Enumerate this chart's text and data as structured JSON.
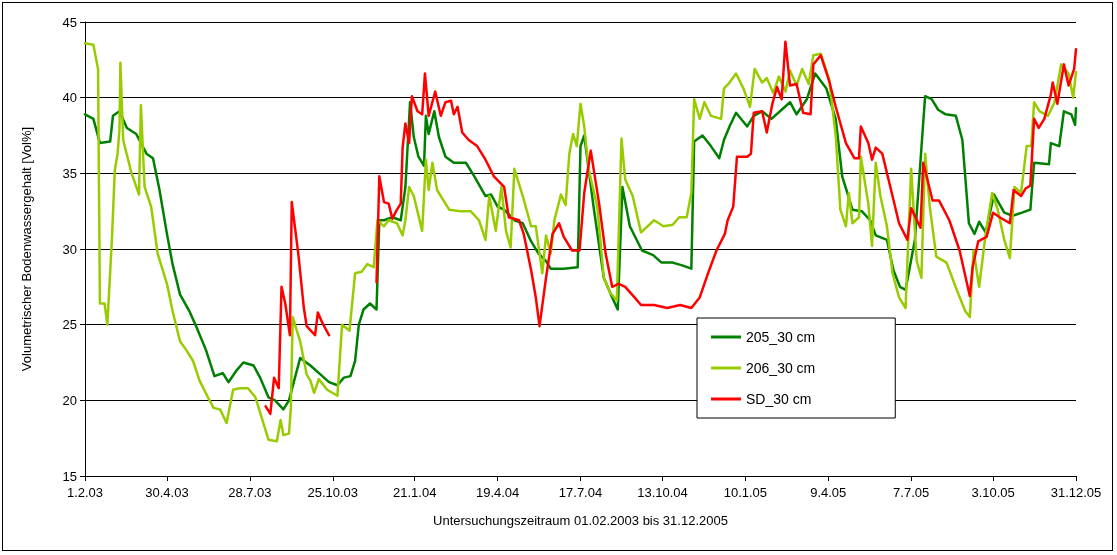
{
  "chart_data": {
    "type": "line",
    "xlabel": "Untersuchungszeitraum 01.02.2003 bis 31.12.2005",
    "ylabel": "Volumetrischer Bodenwassergehalt [Vol%]",
    "xlim": [
      "2003-02-01",
      "2005-12-31"
    ],
    "xticks": [
      {
        "value": "2003-02-01",
        "label": "1.2.03"
      },
      {
        "value": "2003-04-30",
        "label": "30.4.03"
      },
      {
        "value": "2003-07-28",
        "label": "28.7.03"
      },
      {
        "value": "2003-10-25",
        "label": "25.10.03"
      },
      {
        "value": "2004-01-21",
        "label": "21.1.04"
      },
      {
        "value": "2004-04-19",
        "label": "19.4.04"
      },
      {
        "value": "2004-07-17",
        "label": "17.7.04"
      },
      {
        "value": "2004-10-13",
        "label": "13.10.04"
      },
      {
        "value": "2005-01-10",
        "label": "10.1.05"
      },
      {
        "value": "2005-04-09",
        "label": "9.4.05"
      },
      {
        "value": "2005-07-07",
        "label": "7.7.05"
      },
      {
        "value": "2005-10-03",
        "label": "3.10.05"
      },
      {
        "value": "2005-12-31",
        "label": "31.12.05"
      }
    ],
    "ylim": [
      15,
      45
    ],
    "yticks": [
      15,
      20,
      25,
      30,
      35,
      40,
      45
    ],
    "grid": "y",
    "legend": "bottom",
    "marker": "none",
    "line_style": "solid",
    "series": [
      {
        "name": "205_30 cm",
        "color": "#008000",
        "x": [
          "2003-02-01",
          "2003-02-10",
          "2003-02-17",
          "2003-02-28",
          "2003-03-03",
          "2003-03-10",
          "2003-03-18",
          "2003-03-28",
          "2003-04-08",
          "2003-04-15",
          "2003-04-22",
          "2003-04-30",
          "2003-05-06",
          "2003-05-14",
          "2003-05-24",
          "2003-06-01",
          "2003-06-11",
          "2003-06-20",
          "2003-06-29",
          "2003-07-05",
          "2003-07-14",
          "2003-07-21",
          "2003-08-01",
          "2003-08-08",
          "2003-08-17",
          "2003-08-24",
          "2003-09-02",
          "2003-09-08",
          "2003-09-20",
          "2003-10-01",
          "2003-10-12",
          "2003-10-21",
          "2003-10-30",
          "2003-11-06",
          "2003-11-13",
          "2003-11-18",
          "2003-11-22",
          "2003-11-27",
          "2003-12-04",
          "2003-12-11",
          "2003-12-14",
          "2003-12-19",
          "2003-12-28",
          "2004-01-06",
          "2004-01-11",
          "2004-01-16",
          "2004-01-20",
          "2004-01-25",
          "2004-01-31",
          "2004-02-02",
          "2004-02-05",
          "2004-02-11",
          "2004-02-16",
          "2004-02-23",
          "2004-03-03",
          "2004-03-16",
          "2004-03-25",
          "2004-04-06",
          "2004-04-12",
          "2004-04-19",
          "2004-04-26",
          "2004-05-07",
          "2004-05-16",
          "2004-05-25",
          "2004-06-02",
          "2004-06-10",
          "2004-06-15",
          "2004-06-29",
          "2004-07-14",
          "2004-07-17",
          "2004-07-21",
          "2004-07-31",
          "2004-08-11",
          "2004-08-20",
          "2004-08-26",
          "2004-08-31",
          "2004-09-08",
          "2004-09-21",
          "2004-10-03",
          "2004-10-12",
          "2004-10-24",
          "2004-11-04",
          "2004-11-13",
          "2004-11-16",
          "2004-11-25",
          "2004-12-04",
          "2004-12-13",
          "2004-12-18",
          "2004-12-24",
          "2004-12-31",
          "2005-01-12",
          "2005-01-19",
          "2005-01-28",
          "2005-02-07",
          "2005-02-18",
          "2005-02-27",
          "2005-03-06",
          "2005-03-17",
          "2005-03-26",
          "2005-04-07",
          "2005-04-17",
          "2005-04-24",
          "2005-05-05",
          "2005-05-15",
          "2005-05-24",
          "2005-05-30",
          "2005-06-11",
          "2005-06-18",
          "2005-06-25",
          "2005-07-01",
          "2005-07-11",
          "2005-07-22",
          "2005-07-29",
          "2005-08-05",
          "2005-08-13",
          "2005-08-24",
          "2005-08-31",
          "2005-09-07",
          "2005-09-13",
          "2005-09-18",
          "2005-09-25",
          "2005-10-04",
          "2005-10-15",
          "2005-10-24",
          "2005-11-03",
          "2005-11-12",
          "2005-11-16",
          "2005-12-02",
          "2005-12-04",
          "2005-12-13",
          "2005-12-18",
          "2005-12-26",
          "2005-12-30",
          "2005-12-31"
        ],
        "values": [
          38.9,
          38.6,
          37.0,
          37.1,
          38.8,
          39.1,
          38.0,
          37.6,
          36.3,
          36.0,
          33.9,
          31.0,
          29.0,
          27.0,
          25.9,
          24.8,
          23.3,
          21.6,
          21.8,
          21.2,
          22.0,
          22.5,
          22.3,
          21.5,
          20.2,
          20.0,
          19.4,
          20.0,
          22.8,
          22.3,
          21.7,
          21.2,
          21.0,
          21.5,
          21.6,
          22.6,
          25.0,
          26.0,
          26.4,
          26.0,
          31.9,
          31.9,
          32.1,
          31.9,
          34.1,
          39.7,
          37.4,
          36.1,
          35.5,
          38.8,
          37.6,
          39.1,
          37.4,
          36.1,
          35.7,
          35.7,
          34.8,
          33.5,
          33.6,
          32.8,
          32.6,
          31.9,
          31.7,
          30.5,
          29.7,
          29.2,
          28.7,
          28.7,
          28.8,
          36.8,
          37.5,
          32.8,
          28.1,
          26.8,
          26.0,
          34.1,
          31.5,
          29.9,
          29.6,
          29.1,
          29.1,
          28.9,
          28.7,
          37.1,
          37.5,
          36.8,
          36.0,
          37.2,
          38.1,
          39.0,
          38.1,
          38.8,
          39.1,
          38.6,
          39.2,
          39.7,
          38.9,
          39.9,
          41.6,
          40.6,
          38.6,
          34.8,
          32.6,
          32.5,
          31.9,
          30.9,
          30.6,
          28.6,
          27.5,
          27.3,
          30.6,
          40.1,
          39.9,
          39.2,
          38.9,
          38.8,
          37.2,
          31.7,
          31.0,
          31.8,
          31.1,
          33.6,
          32.4,
          32.2,
          32.4,
          32.6,
          35.7,
          35.6,
          37.0,
          36.8,
          39.1,
          38.9,
          38.2,
          39.3
        ]
      },
      {
        "name": "206_30 cm",
        "color": "#99cc00",
        "x": [
          "2003-02-01",
          "2003-02-10",
          "2003-02-15",
          "2003-02-17",
          "2003-02-22",
          "2003-02-25",
          "2003-03-02",
          "2003-03-05",
          "2003-03-08",
          "2003-03-10",
          "2003-03-11",
          "2003-03-14",
          "2003-03-23",
          "2003-03-27",
          "2003-03-31",
          "2003-04-02",
          "2003-04-06",
          "2003-04-13",
          "2003-04-20",
          "2003-04-30",
          "2003-05-06",
          "2003-05-14",
          "2003-05-21",
          "2003-05-28",
          "2003-06-04",
          "2003-06-13",
          "2003-06-19",
          "2003-06-26",
          "2003-07-03",
          "2003-07-10",
          "2003-07-17",
          "2003-07-26",
          "2003-08-03",
          "2003-08-12",
          "2003-08-17",
          "2003-08-26",
          "2003-08-30",
          "2003-09-02",
          "2003-09-08",
          "2003-09-10",
          "2003-09-12",
          "2003-09-20",
          "2003-09-27",
          "2003-10-01",
          "2003-10-05",
          "2003-10-10",
          "2003-10-19",
          "2003-10-30",
          "2003-11-04",
          "2003-11-12",
          "2003-11-18",
          "2003-11-25",
          "2003-12-01",
          "2003-12-08",
          "2003-12-12",
          "2003-12-19",
          "2003-12-24",
          "2004-01-02",
          "2004-01-08",
          "2004-01-11",
          "2004-01-15",
          "2004-01-20",
          "2004-01-29",
          "2004-02-02",
          "2004-02-05",
          "2004-02-09",
          "2004-02-14",
          "2004-02-27",
          "2004-03-10",
          "2004-03-21",
          "2004-03-30",
          "2004-04-06",
          "2004-04-10",
          "2004-04-17",
          "2004-04-23",
          "2004-04-28",
          "2004-05-03",
          "2004-05-07",
          "2004-05-16",
          "2004-05-25",
          "2004-05-30",
          "2004-06-06",
          "2004-06-10",
          "2004-06-15",
          "2004-06-19",
          "2004-06-26",
          "2004-07-01",
          "2004-07-05",
          "2004-07-09",
          "2004-07-13",
          "2004-07-17",
          "2004-07-21",
          "2004-07-26",
          "2004-08-04",
          "2004-08-11",
          "2004-08-18",
          "2004-08-25",
          "2004-08-30",
          "2004-09-03",
          "2004-09-11",
          "2004-09-20",
          "2004-10-04",
          "2004-10-14",
          "2004-10-24",
          "2004-10-31",
          "2004-11-08",
          "2004-11-13",
          "2004-11-16",
          "2004-11-22",
          "2004-11-27",
          "2004-12-04",
          "2004-12-15",
          "2004-12-18",
          "2004-12-24",
          "2004-12-31",
          "2005-01-08",
          "2005-01-15",
          "2005-01-20",
          "2005-01-28",
          "2005-02-02",
          "2005-02-09",
          "2005-02-15",
          "2005-02-22",
          "2005-02-27",
          "2005-03-06",
          "2005-03-12",
          "2005-03-19",
          "2005-03-24",
          "2005-04-01",
          "2005-04-10",
          "2005-04-17",
          "2005-04-22",
          "2005-04-28",
          "2005-05-01",
          "2005-05-05",
          "2005-05-12",
          "2005-05-14",
          "2005-05-22",
          "2005-05-26",
          "2005-05-30",
          "2005-06-04",
          "2005-06-11",
          "2005-06-17",
          "2005-06-24",
          "2005-07-01",
          "2005-07-07",
          "2005-07-13",
          "2005-07-18",
          "2005-07-22",
          "2005-07-27",
          "2005-08-03",
          "2005-08-14",
          "2005-08-25",
          "2005-09-03",
          "2005-09-08",
          "2005-09-12",
          "2005-09-18",
          "2005-09-25",
          "2005-10-02",
          "2005-10-08",
          "2005-10-15",
          "2005-10-21",
          "2005-10-26",
          "2005-11-02",
          "2005-11-08",
          "2005-11-13",
          "2005-11-16",
          "2005-11-22",
          "2005-12-01",
          "2005-12-08",
          "2005-12-15",
          "2005-12-23",
          "2005-12-28",
          "2005-12-31"
        ],
        "values": [
          43.6,
          43.5,
          41.9,
          26.4,
          26.4,
          25.0,
          30.8,
          35.2,
          36.3,
          37.9,
          42.3,
          37.2,
          35.0,
          34.3,
          33.6,
          39.5,
          34.1,
          32.8,
          29.7,
          27.7,
          25.9,
          23.9,
          23.3,
          22.6,
          21.3,
          20.2,
          19.5,
          19.4,
          18.5,
          20.7,
          20.8,
          20.8,
          20.2,
          18.4,
          17.4,
          17.3,
          18.7,
          17.7,
          17.8,
          19.5,
          25.5,
          23.9,
          21.7,
          21.3,
          20.5,
          21.4,
          20.7,
          20.3,
          25.0,
          24.6,
          28.4,
          28.5,
          29.0,
          28.8,
          31.9,
          31.5,
          31.9,
          31.7,
          30.9,
          31.9,
          34.1,
          33.5,
          31.2,
          35.9,
          33.9,
          35.7,
          33.9,
          32.6,
          32.5,
          32.5,
          31.9,
          30.6,
          33.5,
          31.2,
          34.1,
          31.2,
          30.1,
          35.3,
          33.5,
          31.5,
          31.5,
          28.4,
          30.9,
          29.7,
          31.9,
          33.6,
          32.9,
          36.3,
          37.6,
          36.8,
          39.6,
          38.1,
          35.2,
          32.8,
          28.1,
          27.1,
          26.6,
          37.3,
          34.6,
          33.5,
          31.1,
          31.9,
          31.5,
          31.6,
          32.1,
          32.1,
          33.7,
          39.9,
          38.6,
          39.7,
          38.8,
          38.6,
          40.6,
          41.0,
          41.6,
          40.6,
          39.4,
          41.9,
          41.0,
          41.3,
          40.3,
          41.4,
          40.4,
          41.8,
          40.8,
          41.9,
          40.9,
          42.8,
          42.9,
          41.2,
          37.5,
          32.6,
          31.5,
          33.7,
          31.7,
          32.1,
          36.1,
          33.0,
          30.2,
          35.7,
          33.5,
          31.5,
          28.4,
          26.8,
          26.1,
          35.3,
          29.2,
          28.1,
          36.3,
          32.8,
          29.5,
          29.1,
          27.3,
          25.9,
          25.5,
          29.9,
          27.5,
          31.0,
          33.7,
          32.6,
          30.6,
          29.4,
          34.1,
          33.7,
          36.8,
          36.8,
          39.7,
          39.1,
          38.8,
          39.7,
          42.2,
          41.6,
          40.0,
          41.7
        ]
      },
      {
        "name": "SD_30 cm",
        "color": "#ff0000",
        "x": [
          "2003-08-14",
          "2003-08-19",
          "2003-08-23",
          "2003-08-28",
          "2003-08-31",
          "2003-09-04",
          "2003-09-09",
          "2003-09-11",
          "2003-09-18",
          "2003-09-24",
          "2003-09-27",
          "2003-10-06",
          "2003-10-09",
          "2003-10-14",
          "2003-10-21",
          "2003-11-20",
          "2003-12-11",
          "2003-12-14",
          "2003-12-19",
          "2003-12-24",
          "2003-12-28",
          "2004-01-01",
          "2004-01-06",
          "2004-01-08",
          "2004-01-11",
          "2004-01-15",
          "2004-01-18",
          "2004-01-24",
          "2004-01-29",
          "2004-02-01",
          "2004-02-05",
          "2004-02-12",
          "2004-02-18",
          "2004-02-23",
          "2004-02-29",
          "2004-03-03",
          "2004-03-07",
          "2004-03-12",
          "2004-03-19",
          "2004-03-28",
          "2004-04-06",
          "2004-04-15",
          "2004-04-26",
          "2004-05-01",
          "2004-05-12",
          "2004-05-17",
          "2004-05-25",
          "2004-05-30",
          "2004-06-03",
          "2004-06-10",
          "2004-06-17",
          "2004-06-24",
          "2004-06-29",
          "2004-07-08",
          "2004-07-16",
          "2004-07-21",
          "2004-07-28",
          "2004-08-06",
          "2004-08-13",
          "2004-08-20",
          "2004-08-27",
          "2004-09-03",
          "2004-09-13",
          "2004-09-20",
          "2004-10-04",
          "2004-10-18",
          "2004-11-01",
          "2004-11-13",
          "2004-11-22",
          "2004-12-01",
          "2004-12-10",
          "2004-12-19",
          "2004-12-22",
          "2004-12-28",
          "2005-01-01",
          "2005-01-12",
          "2005-01-16",
          "2005-01-19",
          "2005-01-28",
          "2005-02-02",
          "2005-02-08",
          "2005-02-13",
          "2005-02-18",
          "2005-02-22",
          "2005-02-27",
          "2005-03-06",
          "2005-03-13",
          "2005-03-21",
          "2005-03-24",
          "2005-04-01",
          "2005-04-10",
          "2005-04-17",
          "2005-04-28",
          "2005-05-07",
          "2005-05-12",
          "2005-05-14",
          "2005-05-22",
          "2005-05-26",
          "2005-05-30",
          "2005-06-06",
          "2005-06-17",
          "2005-06-24",
          "2005-07-03",
          "2005-07-07",
          "2005-07-17",
          "2005-07-20",
          "2005-07-30",
          "2005-08-06",
          "2005-08-17",
          "2005-08-28",
          "2005-09-08",
          "2005-09-11",
          "2005-09-17",
          "2005-09-26",
          "2005-10-03",
          "2005-10-10",
          "2005-10-21",
          "2005-10-25",
          "2005-11-02",
          "2005-11-07",
          "2005-11-12",
          "2005-11-16",
          "2005-11-21",
          "2005-11-27",
          "2005-12-04",
          "2005-12-06",
          "2005-12-11",
          "2005-12-18",
          "2005-12-23",
          "2005-12-29",
          "2005-12-31"
        ],
        "values": [
          19.6,
          19.1,
          21.5,
          20.8,
          27.5,
          26.4,
          24.3,
          33.1,
          29.7,
          26.1,
          24.9,
          24.3,
          25.8,
          25.1,
          24.3,
          null,
          27.8,
          34.8,
          33.1,
          33.0,
          32.0,
          32.5,
          33.0,
          36.7,
          38.3,
          37.0,
          40.1,
          39.1,
          38.9,
          41.6,
          38.8,
          40.4,
          38.8,
          39.7,
          39.8,
          38.9,
          39.4,
          37.7,
          37.2,
          36.8,
          35.9,
          34.8,
          34.1,
          32.1,
          31.9,
          31.0,
          28.6,
          26.8,
          24.9,
          28.1,
          31.0,
          31.7,
          30.8,
          29.9,
          29.9,
          33.7,
          36.5,
          33.0,
          29.7,
          27.5,
          27.7,
          27.5,
          26.8,
          26.3,
          26.3,
          26.1,
          26.3,
          26.1,
          26.8,
          28.4,
          29.9,
          31.0,
          31.9,
          32.8,
          36.1,
          36.1,
          36.3,
          39.0,
          39.1,
          37.7,
          39.6,
          40.7,
          39.9,
          43.7,
          40.8,
          40.9,
          39.0,
          38.9,
          42.2,
          42.8,
          41.1,
          39.4,
          37.0,
          36.0,
          36.0,
          38.1,
          37.0,
          35.9,
          36.7,
          36.3,
          33.5,
          31.7,
          30.6,
          32.7,
          31.4,
          35.7,
          33.2,
          33.2,
          31.9,
          29.9,
          26.9,
          28.8,
          30.5,
          30.8,
          32.4,
          32.1,
          31.7,
          33.9,
          33.5,
          34.0,
          34.2,
          38.6,
          38.0,
          38.6,
          40.2,
          41.0,
          39.6,
          42.2,
          40.8,
          41.9,
          43.2
        ]
      }
    ]
  }
}
